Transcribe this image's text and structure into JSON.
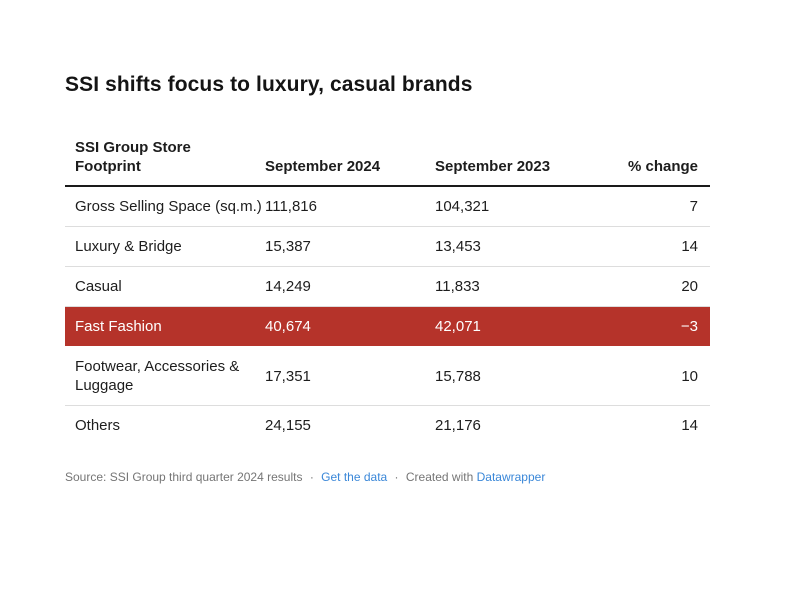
{
  "title": "SSI shifts focus to luxury, casual brands",
  "table": {
    "header": {
      "col1": "SSI Group Store Footprint",
      "col2": "September 2024",
      "col3": "September 2023",
      "col4": "% change"
    },
    "rows": [
      {
        "label": "Gross Selling Space (sq.m.)",
        "sep2024": "111,816",
        "sep2023": "104,321",
        "change": "7",
        "highlight": false
      },
      {
        "label": "Luxury & Bridge",
        "sep2024": "15,387",
        "sep2023": "13,453",
        "change": "14",
        "highlight": false
      },
      {
        "label": "Casual",
        "sep2024": "14,249",
        "sep2023": "11,833",
        "change": "20",
        "highlight": false
      },
      {
        "label": "Fast Fashion",
        "sep2024": "40,674",
        "sep2023": "42,071",
        "change": "−3",
        "highlight": true
      },
      {
        "label": "Footwear, Accessories & Luggage",
        "sep2024": "17,351",
        "sep2023": "15,788",
        "change": "10",
        "highlight": false
      },
      {
        "label": "Others",
        "sep2024": "24,155",
        "sep2023": "21,176",
        "change": "14",
        "highlight": false
      }
    ]
  },
  "footer": {
    "source": "Source: SSI Group third quarter 2024 results",
    "dot": "·",
    "get_the_data": "Get the data",
    "created_with": "Created with",
    "datawrapper": "Datawrapper"
  },
  "colors": {
    "highlight_row": "#b5332a",
    "highlight_text": "#ffffff",
    "row_separator": "#dddddd",
    "header_border": "#1a1a1a",
    "link": "#3a87d8",
    "footer_text": "#757575"
  },
  "chart_data": {
    "type": "table",
    "title": "SSI shifts focus to luxury, casual brands",
    "columns": [
      "SSI Group Store Footprint",
      "September 2024",
      "September 2023",
      "% change"
    ],
    "rows": [
      [
        "Gross Selling Space (sq.m.)",
        111816,
        104321,
        7
      ],
      [
        "Luxury & Bridge",
        15387,
        13453,
        14
      ],
      [
        "Casual",
        14249,
        11833,
        20
      ],
      [
        "Fast Fashion",
        40674,
        42071,
        -3
      ],
      [
        "Footwear, Accessories & Luggage",
        17351,
        15788,
        10
      ],
      [
        "Others",
        24155,
        21176,
        14
      ]
    ],
    "highlighted_row": "Fast Fashion",
    "highlight_color": "#b5332a",
    "source": "SSI Group third quarter 2024 results",
    "layout_hints": {
      "numeric_columns_alignment": "left",
      "change_column_alignment": "right",
      "header_rule": "solid 2px dark",
      "row_rules": "solid 1px light gray"
    }
  }
}
